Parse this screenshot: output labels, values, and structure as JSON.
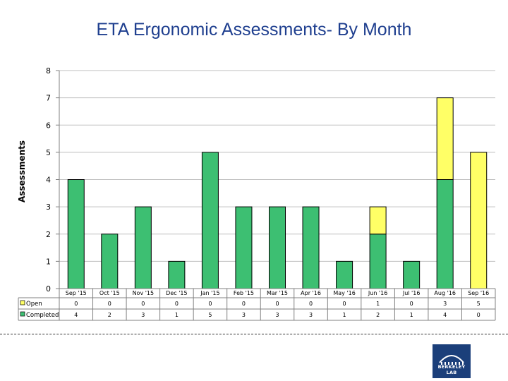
{
  "chart_data": {
    "type": "bar",
    "stacked": true,
    "title": "ETA Ergonomic Assessments- By Month",
    "xlabel": "",
    "ylabel": "Assessments",
    "ylim": [
      0,
      8
    ],
    "yticks": [
      0,
      1,
      2,
      3,
      4,
      5,
      6,
      7,
      8
    ],
    "categories": [
      "Sep '15",
      "Oct '15",
      "Nov '15",
      "Dec '15",
      "Jan '15",
      "Feb '15",
      "Mar '15",
      "Apr '16",
      "May '16",
      "Jun '16",
      "Jul '16",
      "Aug '16",
      "Sep '16"
    ],
    "series": [
      {
        "name": "Completed",
        "color": "#3dbf72",
        "values": [
          4,
          2,
          3,
          1,
          5,
          3,
          3,
          3,
          1,
          2,
          1,
          4,
          0
        ]
      },
      {
        "name": "Open",
        "color": "#ffff66",
        "values": [
          0,
          0,
          0,
          0,
          0,
          0,
          0,
          0,
          0,
          1,
          0,
          3,
          5
        ]
      }
    ],
    "table_rows": [
      "Open",
      "Completed"
    ],
    "grid": true,
    "legend": "data-table-left"
  },
  "logo": {
    "text": "BERKELEY LAB"
  }
}
